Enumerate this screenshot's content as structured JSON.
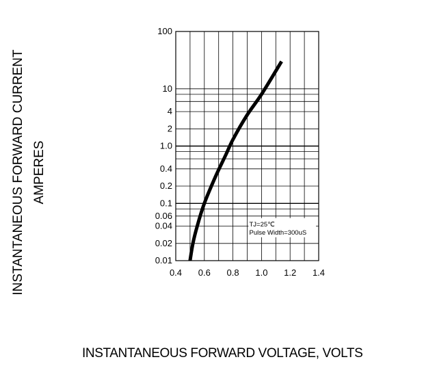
{
  "chart_data": {
    "type": "line",
    "xlabel": "INSTANTANEOUS FORWARD VOLTAGE,   VOLTS",
    "ylabel_line1": "INSTANTANEOUS FORWARD CURRENT",
    "ylabel_line2": "AMPERES",
    "x_ticks": [
      "0.4",
      "0.6",
      "0.8",
      "1.0",
      "1.2",
      "1.4"
    ],
    "y_ticks": [
      "0.01",
      "0.02",
      "0.04",
      "0.06",
      "0.1",
      "0.2",
      "0.4",
      "1.0",
      "2",
      "4",
      "10",
      "100"
    ],
    "xlim": [
      0.4,
      1.4
    ],
    "ylim": [
      0.01,
      100
    ],
    "y_scale": "log",
    "grid": true,
    "annotation": {
      "line1": "TJ=25℃",
      "line2": "Pulse Width=300uS"
    },
    "series": [
      {
        "x": [
          0.5,
          0.52,
          0.55,
          0.6,
          0.68,
          0.75,
          0.8,
          0.9,
          1.0,
          1.14
        ],
        "y": [
          0.01,
          0.02,
          0.04,
          0.1,
          0.3,
          0.7,
          1.3,
          3.5,
          8,
          30
        ]
      }
    ]
  }
}
